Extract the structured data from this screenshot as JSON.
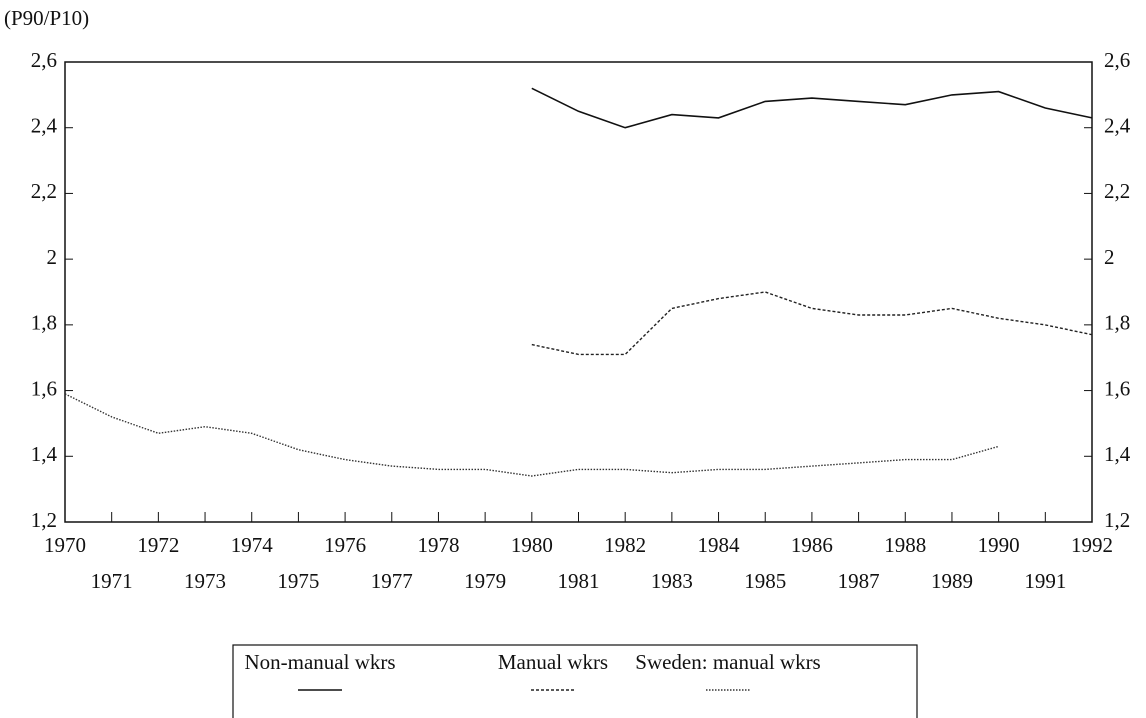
{
  "chart_data": {
    "type": "line",
    "y_axis_label": "(P90/P10)",
    "x": [
      1970,
      1971,
      1972,
      1973,
      1974,
      1975,
      1976,
      1977,
      1978,
      1979,
      1980,
      1981,
      1982,
      1983,
      1984,
      1985,
      1986,
      1987,
      1988,
      1989,
      1990,
      1991,
      1992
    ],
    "xlim": [
      1970,
      1992
    ],
    "xticks": [
      1970,
      1971,
      1972,
      1973,
      1974,
      1975,
      1976,
      1977,
      1978,
      1979,
      1980,
      1981,
      1982,
      1983,
      1984,
      1985,
      1986,
      1987,
      1988,
      1989,
      1990,
      1991,
      1992
    ],
    "ylim": [
      1.2,
      2.6
    ],
    "yticks": [
      {
        "value": 1.2,
        "label": "1,2"
      },
      {
        "value": 1.4,
        "label": "1,4"
      },
      {
        "value": 1.6,
        "label": "1,6"
      },
      {
        "value": 1.8,
        "label": "1,8"
      },
      2,
      {
        "value": 2.2,
        "label": "2,2"
      },
      {
        "value": 2.4,
        "label": "2,4"
      },
      {
        "value": 2.6,
        "label": "2,6"
      }
    ],
    "y2lim": [
      1.2,
      2.6
    ],
    "y2ticks": [
      {
        "value": 1.2,
        "label": "1,2"
      },
      {
        "value": 1.4,
        "label": "1,4"
      },
      {
        "value": 1.6,
        "label": "1,6"
      },
      {
        "value": 1.8,
        "label": "1,8"
      },
      2,
      {
        "value": 2.2,
        "label": "2,2"
      },
      {
        "value": 2.4,
        "label": "2,4"
      },
      {
        "value": 2.6,
        "label": "2,6"
      }
    ],
    "grid": false,
    "legend": "bottom",
    "series": [
      {
        "name": "Non-manual wkrs",
        "color": "#111111",
        "dash": "solid",
        "values": [
          null,
          null,
          null,
          null,
          null,
          null,
          null,
          null,
          null,
          null,
          2.52,
          2.45,
          2.4,
          2.44,
          2.43,
          2.48,
          2.49,
          2.48,
          2.47,
          2.5,
          2.51,
          2.46,
          2.43
        ]
      },
      {
        "name": "Manual wkrs",
        "color": "#222222",
        "dash": "dashed",
        "values": [
          null,
          null,
          null,
          null,
          null,
          null,
          null,
          null,
          null,
          null,
          1.74,
          1.71,
          1.71,
          1.85,
          1.88,
          1.9,
          1.85,
          1.83,
          1.83,
          1.85,
          1.82,
          1.8,
          1.77
        ]
      },
      {
        "name": "Sweden: manual wkrs",
        "color": "#333333",
        "dash": "dotted",
        "values": [
          1.59,
          1.52,
          1.47,
          1.49,
          1.47,
          1.42,
          1.39,
          1.37,
          1.36,
          1.36,
          1.34,
          1.36,
          1.36,
          1.35,
          1.36,
          1.36,
          1.37,
          1.38,
          1.39,
          1.39,
          1.43,
          null,
          null
        ]
      }
    ]
  }
}
